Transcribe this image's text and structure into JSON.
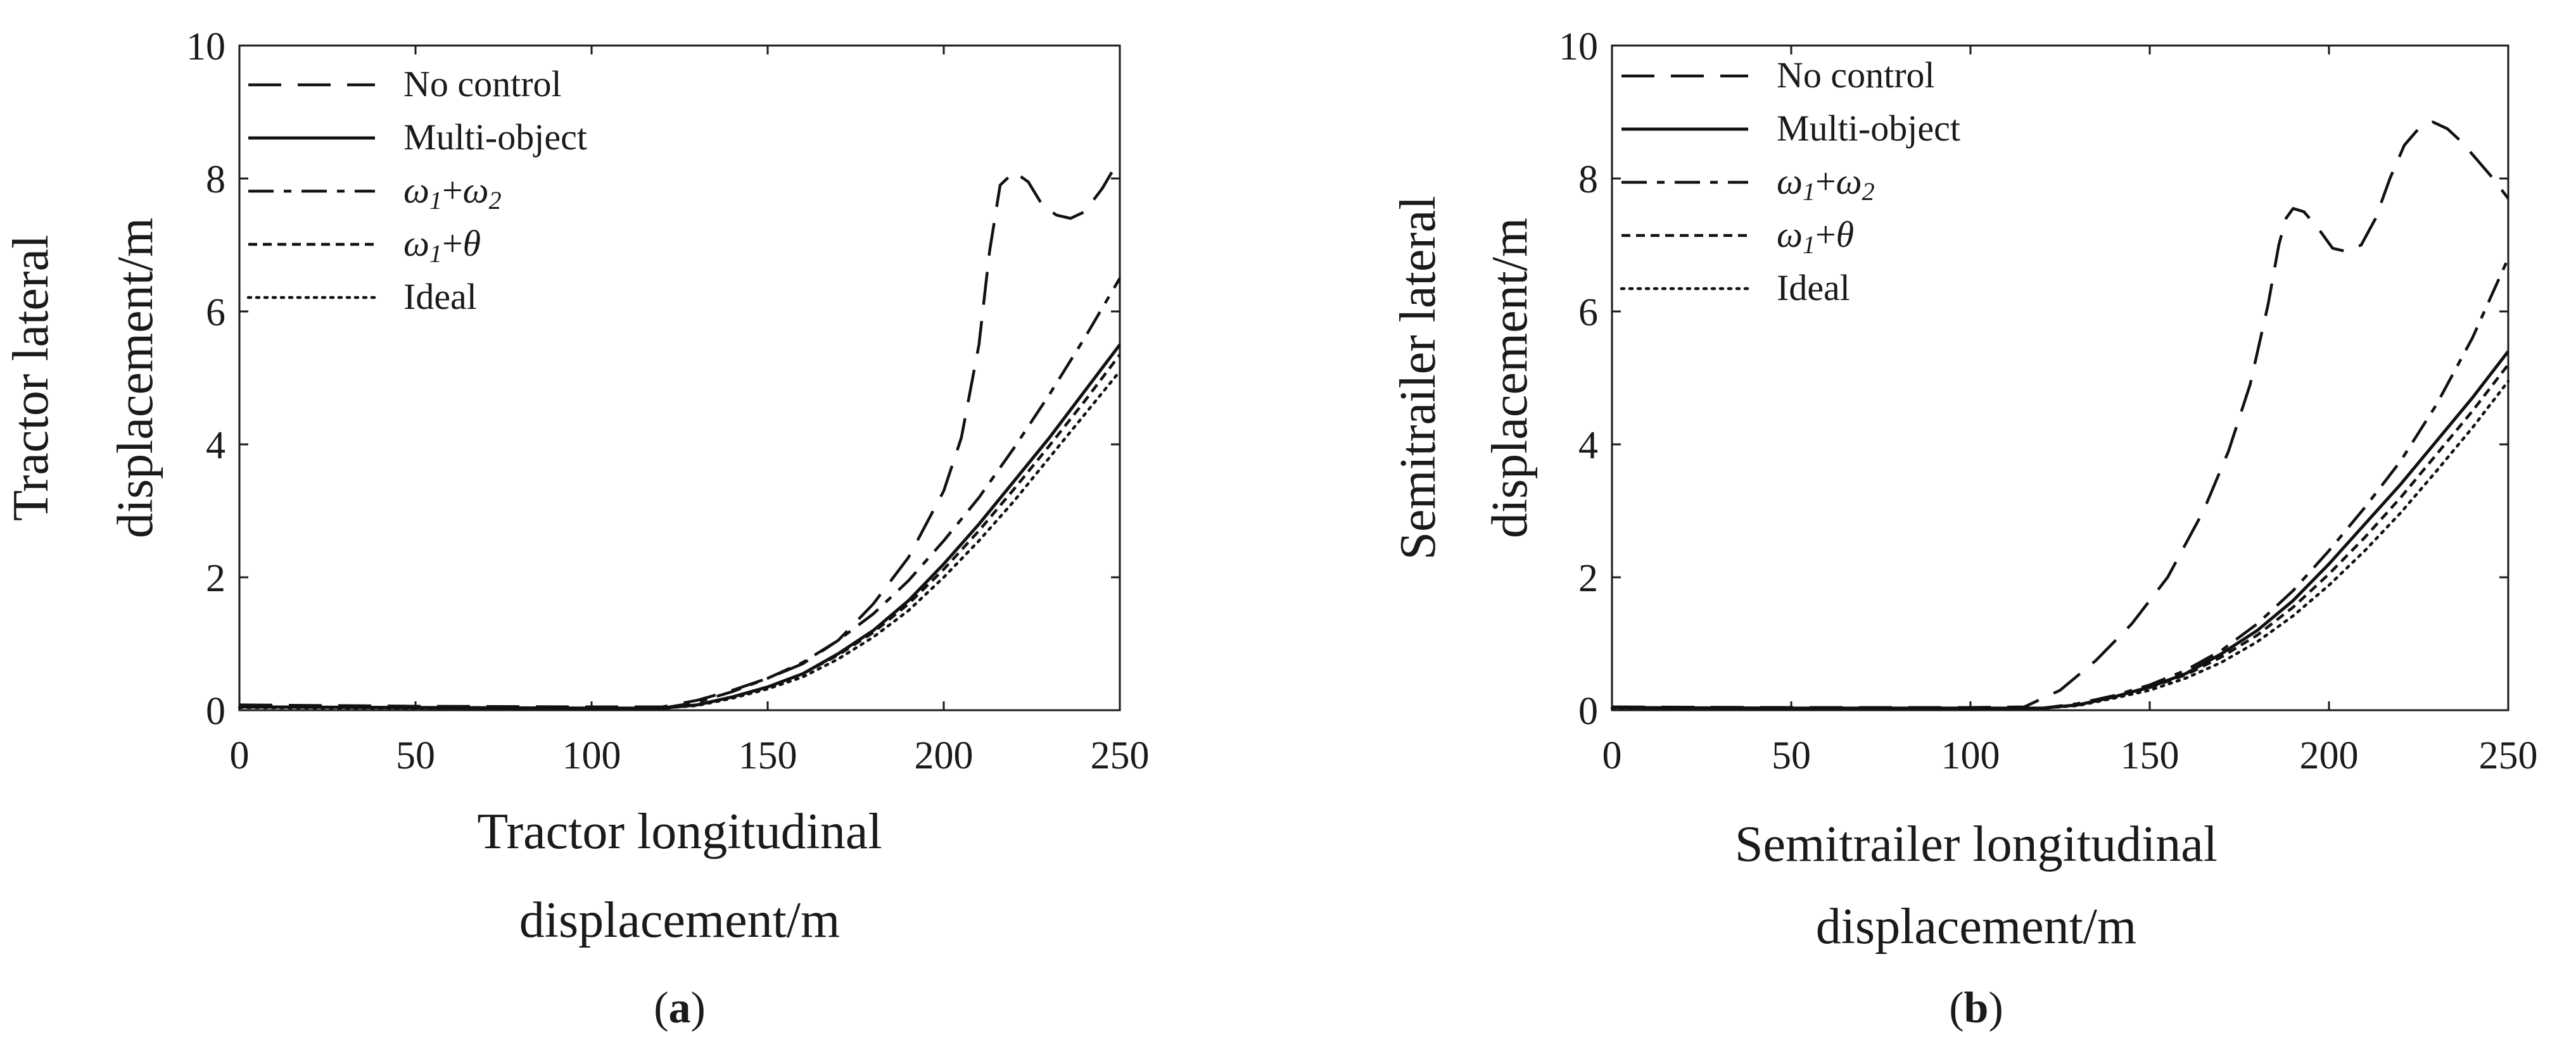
{
  "chart_data": [
    {
      "type": "line",
      "caption_letter": "a",
      "xlabel_lines": [
        "Tractor longitudinal",
        "displacement/m"
      ],
      "ylabel_lines": [
        "Tractor lateral",
        "displacement/m"
      ],
      "xlim": [
        0,
        250
      ],
      "ylim": [
        0,
        10
      ],
      "xticks": [
        0,
        50,
        100,
        150,
        200,
        250
      ],
      "yticks": [
        0,
        2,
        4,
        6,
        8,
        10
      ],
      "legend_position": "top-left",
      "series": [
        {
          "name": "No control",
          "style": "longdash",
          "x": [
            0,
            50,
            100,
            120,
            130,
            140,
            150,
            160,
            170,
            180,
            190,
            200,
            205,
            210,
            213,
            216,
            220,
            224,
            228,
            232,
            236,
            240,
            245,
            250
          ],
          "y": [
            0.08,
            0.06,
            0.05,
            0.05,
            0.15,
            0.3,
            0.48,
            0.7,
            1.05,
            1.6,
            2.3,
            3.3,
            4.1,
            5.5,
            6.9,
            7.9,
            8.1,
            7.95,
            7.6,
            7.45,
            7.4,
            7.5,
            7.85,
            8.3
          ]
        },
        {
          "name": "Multi-object",
          "style": "solid",
          "x": [
            0,
            50,
            100,
            120,
            130,
            140,
            150,
            160,
            170,
            180,
            190,
            200,
            210,
            220,
            230,
            240,
            250
          ],
          "y": [
            0.05,
            0.04,
            0.03,
            0.03,
            0.08,
            0.2,
            0.35,
            0.55,
            0.85,
            1.2,
            1.65,
            2.2,
            2.8,
            3.45,
            4.1,
            4.8,
            5.5
          ]
        },
        {
          "name": "ω1+ω2",
          "style": "dashdot",
          "x": [
            0,
            50,
            100,
            120,
            130,
            140,
            150,
            160,
            170,
            180,
            190,
            200,
            210,
            220,
            230,
            240,
            250
          ],
          "y": [
            0.05,
            0.04,
            0.03,
            0.03,
            0.12,
            0.28,
            0.48,
            0.72,
            1.05,
            1.45,
            1.95,
            2.55,
            3.2,
            3.95,
            4.75,
            5.6,
            6.5
          ]
        },
        {
          "name": "ω1+θ",
          "style": "shortdash",
          "x": [
            0,
            50,
            100,
            120,
            130,
            140,
            150,
            160,
            170,
            180,
            190,
            200,
            210,
            220,
            230,
            240,
            250
          ],
          "y": [
            0.05,
            0.04,
            0.03,
            0.03,
            0.08,
            0.2,
            0.35,
            0.55,
            0.83,
            1.17,
            1.6,
            2.12,
            2.7,
            3.33,
            3.98,
            4.65,
            5.35
          ]
        },
        {
          "name": "Ideal",
          "style": "dotted",
          "x": [
            0,
            50,
            100,
            120,
            130,
            140,
            150,
            160,
            170,
            180,
            190,
            200,
            210,
            220,
            230,
            240,
            250
          ],
          "y": [
            0.04,
            0.03,
            0.03,
            0.03,
            0.07,
            0.18,
            0.32,
            0.5,
            0.77,
            1.1,
            1.5,
            2.0,
            2.55,
            3.15,
            3.8,
            4.45,
            5.1
          ]
        }
      ]
    },
    {
      "type": "line",
      "caption_letter": "b",
      "xlabel_lines": [
        "Semitrailer longitudinal",
        "displacement/m"
      ],
      "ylabel_lines": [
        "Semitrailer lateral",
        "displacement/m"
      ],
      "xlim": [
        0,
        250
      ],
      "ylim": [
        0,
        10
      ],
      "xticks": [
        0,
        50,
        100,
        150,
        200,
        250
      ],
      "yticks": [
        0,
        2,
        4,
        6,
        8,
        10
      ],
      "legend_position": "top-left",
      "series": [
        {
          "name": "No control",
          "style": "longdash",
          "x": [
            0,
            50,
            100,
            115,
            125,
            135,
            145,
            155,
            165,
            172,
            178,
            183,
            186,
            188,
            190,
            193,
            197,
            201,
            205,
            209,
            213,
            217,
            221,
            225,
            229,
            233,
            237,
            241,
            245,
            250
          ],
          "y": [
            0.05,
            0.04,
            0.04,
            0.05,
            0.3,
            0.75,
            1.3,
            2.0,
            3.0,
            3.9,
            4.9,
            6.1,
            7.0,
            7.4,
            7.55,
            7.5,
            7.25,
            6.95,
            6.9,
            7.0,
            7.4,
            8.0,
            8.5,
            8.75,
            8.85,
            8.75,
            8.55,
            8.3,
            8.05,
            7.7
          ]
        },
        {
          "name": "Multi-object",
          "style": "solid",
          "x": [
            0,
            50,
            100,
            120,
            130,
            140,
            150,
            160,
            170,
            180,
            190,
            200,
            210,
            220,
            230,
            240,
            250
          ],
          "y": [
            0.04,
            0.03,
            0.03,
            0.03,
            0.08,
            0.2,
            0.35,
            0.55,
            0.85,
            1.2,
            1.65,
            2.2,
            2.8,
            3.4,
            4.05,
            4.7,
            5.4
          ]
        },
        {
          "name": "ω1+ω2",
          "style": "dashdot",
          "x": [
            0,
            50,
            100,
            120,
            130,
            140,
            150,
            160,
            170,
            180,
            190,
            200,
            210,
            220,
            230,
            240,
            250
          ],
          "y": [
            0.04,
            0.03,
            0.03,
            0.03,
            0.1,
            0.22,
            0.38,
            0.6,
            0.9,
            1.3,
            1.8,
            2.4,
            3.05,
            3.75,
            4.6,
            5.6,
            6.8
          ]
        },
        {
          "name": "ω1+θ",
          "style": "shortdash",
          "x": [
            0,
            50,
            100,
            120,
            130,
            140,
            150,
            160,
            170,
            180,
            190,
            200,
            210,
            220,
            230,
            240,
            250
          ],
          "y": [
            0.04,
            0.03,
            0.03,
            0.03,
            0.08,
            0.2,
            0.34,
            0.53,
            0.8,
            1.13,
            1.55,
            2.05,
            2.6,
            3.2,
            3.85,
            4.5,
            5.2
          ]
        },
        {
          "name": "Ideal",
          "style": "dotted",
          "x": [
            0,
            50,
            100,
            120,
            130,
            140,
            150,
            160,
            170,
            180,
            190,
            200,
            210,
            220,
            230,
            240,
            250
          ],
          "y": [
            0.03,
            0.03,
            0.03,
            0.03,
            0.07,
            0.18,
            0.3,
            0.48,
            0.72,
            1.03,
            1.42,
            1.88,
            2.4,
            2.97,
            3.6,
            4.25,
            4.95
          ]
        }
      ]
    }
  ]
}
